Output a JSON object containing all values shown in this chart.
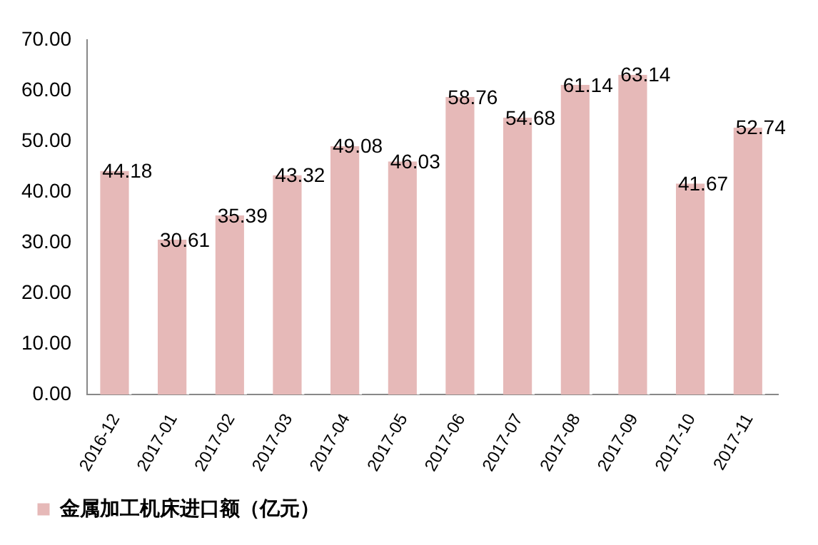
{
  "chart_data": {
    "type": "bar",
    "categories": [
      "2016-12",
      "2017-01",
      "2017-02",
      "2017-03",
      "2017-04",
      "2017-05",
      "2017-06",
      "2017-07",
      "2017-08",
      "2017-09",
      "2017-10",
      "2017-11"
    ],
    "series": [
      {
        "name": "金属加工机床进口额（亿元）",
        "color": "#e6b9b8",
        "values": [
          44.18,
          30.61,
          35.39,
          43.32,
          49.08,
          46.03,
          58.76,
          54.68,
          61.14,
          63.14,
          41.67,
          52.74
        ]
      }
    ],
    "ylim": [
      0,
      70
    ],
    "yticks": [
      {
        "value": 0,
        "label": "0.00"
      },
      {
        "value": 10,
        "label": "10.00"
      },
      {
        "value": 20,
        "label": "20.00"
      },
      {
        "value": 30,
        "label": "30.00"
      },
      {
        "value": 40,
        "label": "40.00"
      },
      {
        "value": 50,
        "label": "50.00"
      },
      {
        "value": 60,
        "label": "60.00"
      },
      {
        "value": 70,
        "label": "70.00"
      }
    ],
    "grid": false,
    "legend": "bottom left",
    "data_labels": true
  }
}
